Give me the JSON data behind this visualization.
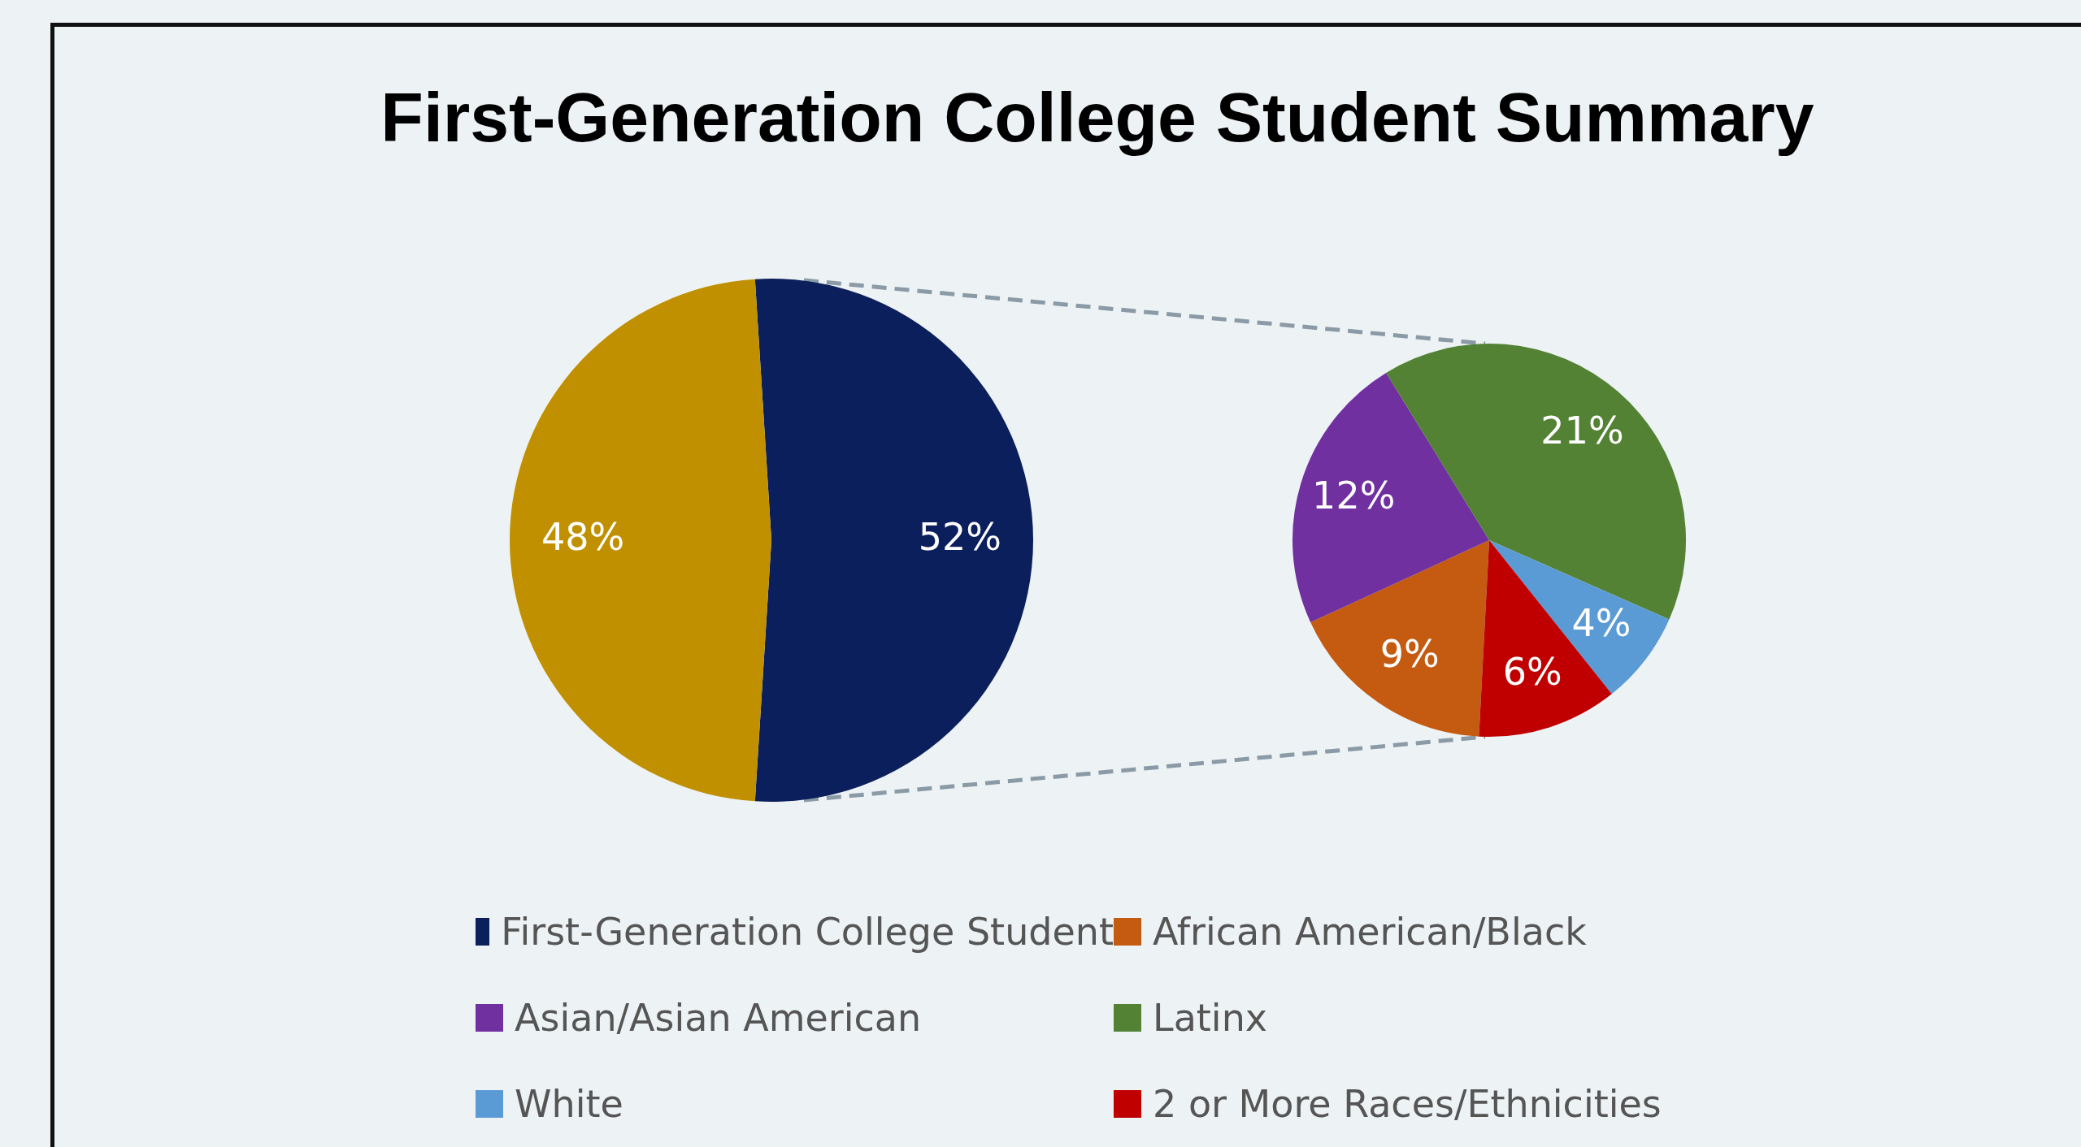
{
  "chart_data": [
    {
      "type": "pie",
      "title": "First-Generation College Student Summary",
      "categories": [
        "First-Generation College Student",
        null
      ],
      "values": [
        52,
        48
      ],
      "colors": [
        "#0b1f5c",
        "#c09000"
      ],
      "value_labels": [
        "52%",
        "48%"
      ],
      "legend": "bottom"
    },
    {
      "type": "pie",
      "categories": [
        "African American/Black",
        "Asian/Asian American",
        "Latinx",
        "White",
        "2 or More Races/Ethnicities"
      ],
      "values": [
        9,
        12,
        21,
        4,
        6
      ],
      "colors": [
        "#c55a11",
        "#7030a0",
        "#548235",
        "#5b9bd5",
        "#c00000"
      ],
      "value_labels": [
        "9%",
        "12%",
        "21%",
        "4%",
        "6%"
      ],
      "legend": "bottom"
    }
  ]
}
